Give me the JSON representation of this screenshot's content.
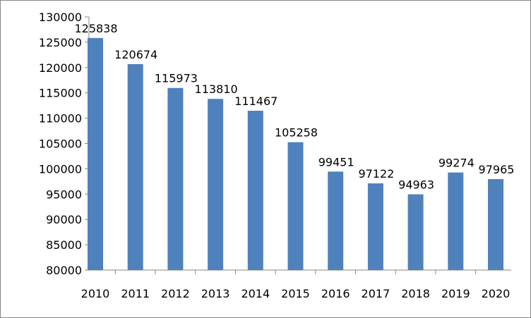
{
  "chart_data": {
    "type": "bar",
    "title": "",
    "xlabel": "",
    "ylabel": "",
    "categories": [
      "2010",
      "2011",
      "2012",
      "2013",
      "2014",
      "2015",
      "2016",
      "2017",
      "2018",
      "2019",
      "2020"
    ],
    "values": [
      125838,
      120674,
      115973,
      113810,
      111467,
      105258,
      99451,
      97122,
      94963,
      99274,
      97965
    ],
    "data_labels": [
      "125838",
      "120674",
      "115973",
      "113810",
      "111467",
      "105258",
      "99451",
      "97122",
      "94963",
      "99274",
      "97965"
    ],
    "ylim": [
      80000,
      130000
    ],
    "yticks": [
      80000,
      85000,
      90000,
      95000,
      100000,
      105000,
      110000,
      115000,
      120000,
      125000,
      130000
    ],
    "ytick_labels": [
      "80000",
      "85000",
      "90000",
      "95000",
      "100000",
      "105000",
      "110000",
      "115000",
      "120000",
      "125000",
      "130000"
    ],
    "grid": false,
    "legend": "none",
    "bar_color": "#4f81bd"
  }
}
